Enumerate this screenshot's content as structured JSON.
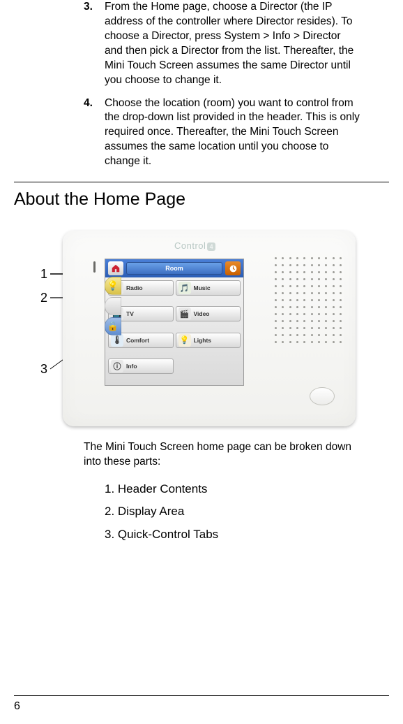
{
  "steps": [
    {
      "num": "3.",
      "text": "From the Home page, choose a Director (the IP address of the controller where Director resides). To choose a Director, press System > Info > Director and then pick a Director from the list. Thereafter, the Mini Touch Screen assumes the same Director until you choose to change it."
    },
    {
      "num": "4.",
      "text": "Choose the location (room) you want to control from the drop-down list provided in the header. This is only required once. Thereafter, the Mini Touch Screen assumes the same location until you choose to change it."
    }
  ],
  "section_heading": "About the Home Page",
  "device": {
    "logo_text": "Control",
    "logo_badge": "4",
    "header": {
      "room_label": "Room"
    },
    "tiles": [
      {
        "label": "Radio",
        "icon_bg": "#e8e8e8",
        "icon_glyph": "📻"
      },
      {
        "label": "Music",
        "icon_bg": "#e8f0e0",
        "icon_glyph": "🎵"
      },
      {
        "label": "TV",
        "icon_bg": "#e8e8e8",
        "icon_glyph": "📺"
      },
      {
        "label": "Video",
        "icon_bg": "#e8e8e8",
        "icon_glyph": "🎬"
      },
      {
        "label": "Comfort",
        "icon_bg": "#e0ecf6",
        "icon_glyph": "🌡"
      },
      {
        "label": "Lights",
        "icon_bg": "#f4eeda",
        "icon_glyph": "💡"
      },
      {
        "label": "Info",
        "icon_bg": "#e8e8e8",
        "icon_glyph": "ⓘ"
      }
    ],
    "tabs": [
      {
        "bg": "linear-gradient(#f6e99a,#d9c24a)",
        "glyph": "💡"
      },
      {
        "bg": "linear-gradient(#f5f5f5,#d0d0d0)",
        "glyph": " "
      },
      {
        "bg": "linear-gradient(#9fbde6,#5f8dd0)",
        "glyph": "🔒"
      }
    ]
  },
  "callouts": {
    "n1": "1",
    "n2": "2",
    "n3": "3"
  },
  "caption": "The Mini Touch Screen home page can be broken down into these parts:",
  "parts": [
    "1.  Header Contents",
    "2.  Display Area",
    "3.  Quick-Control Tabs"
  ],
  "page_number": "6"
}
